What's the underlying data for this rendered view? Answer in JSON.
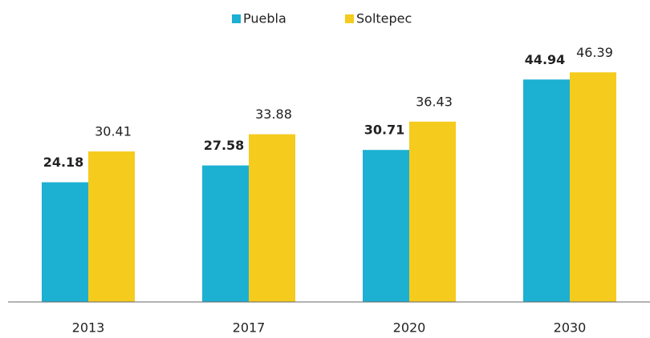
{
  "chart_data": {
    "type": "bar",
    "categories": [
      "2013",
      "2017",
      "2020",
      "2030"
    ],
    "series": [
      {
        "name": "Puebla",
        "color": "#1cb0d2",
        "values": [
          24.18,
          27.58,
          30.71,
          44.94
        ]
      },
      {
        "name": "Soltepec",
        "color": "#f5cb1d",
        "values": [
          30.41,
          33.88,
          36.43,
          46.39
        ]
      }
    ],
    "ylim": [
      0,
      50
    ]
  }
}
